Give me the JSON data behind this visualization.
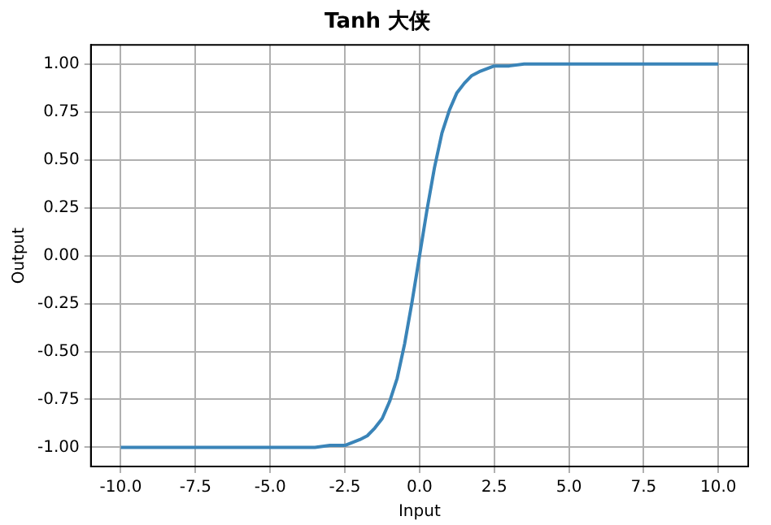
{
  "chart_data": {
    "type": "line",
    "title": "Tanh 大侠",
    "xlabel": "Input",
    "ylabel": "Output",
    "x": [
      -10,
      -5,
      -3.5,
      -3,
      -2.5,
      -2,
      -1.75,
      -1.5,
      -1.25,
      -1,
      -0.75,
      -0.5,
      -0.25,
      0,
      0.25,
      0.5,
      0.75,
      1,
      1.25,
      1.5,
      1.75,
      2,
      2.5,
      3,
      3.5,
      5,
      10
    ],
    "series": [
      {
        "color": "#3a84b8",
        "values": [
          -1,
          -1,
          -1,
          -0.99,
          -0.99,
          -0.96,
          -0.94,
          -0.9,
          -0.85,
          -0.76,
          -0.64,
          -0.46,
          -0.24,
          0,
          0.24,
          0.46,
          0.64,
          0.76,
          0.85,
          0.9,
          0.94,
          0.96,
          0.99,
          0.99,
          1,
          1,
          1
        ]
      }
    ],
    "xlim": [
      -11,
      11
    ],
    "xticks": [
      {
        "value": -10,
        "label": "-10.0"
      },
      {
        "value": -7.5,
        "label": "-7.5"
      },
      {
        "value": -5,
        "label": "-5.0"
      },
      {
        "value": -2.5,
        "label": "-2.5"
      },
      {
        "value": 0,
        "label": "0.0"
      },
      {
        "value": 2.5,
        "label": "2.5"
      },
      {
        "value": 5,
        "label": "5.0"
      },
      {
        "value": 7.5,
        "label": "7.5"
      },
      {
        "value": 10,
        "label": "10.0"
      }
    ],
    "ylim": [
      -1.1,
      1.1
    ],
    "yticks": [
      {
        "value": -1,
        "label": "-1.00"
      },
      {
        "value": -0.75,
        "label": "-0.75"
      },
      {
        "value": -0.5,
        "label": "-0.50"
      },
      {
        "value": -0.25,
        "label": "-0.25"
      },
      {
        "value": 0,
        "label": "0.00"
      },
      {
        "value": 0.25,
        "label": "0.25"
      },
      {
        "value": 0.5,
        "label": "0.50"
      },
      {
        "value": 0.75,
        "label": "0.75"
      },
      {
        "value": 1,
        "label": "1.00"
      }
    ],
    "grid": true,
    "legend": false,
    "marker": "none",
    "line_style": "solid"
  }
}
